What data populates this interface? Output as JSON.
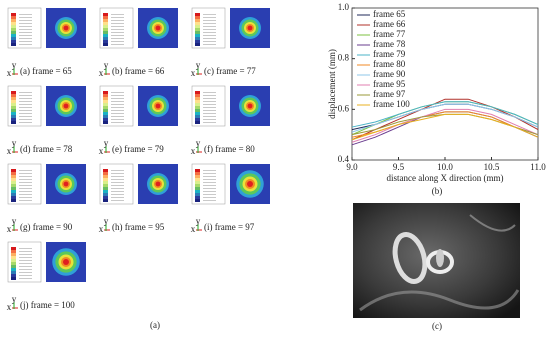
{
  "panel_a": {
    "labels": [
      "(a) frame = 65",
      "(b) frame = 66",
      "(c) frame = 77",
      "(d) frame = 78",
      "(e) frame = 79",
      "(f) frame = 80",
      "(g) frame = 90",
      "(h) frame = 95",
      "(i) frame = 97",
      "(j) frame = 100"
    ],
    "axis_x": "x",
    "axis_y": "y",
    "caption": "(a)"
  },
  "chart_data": {
    "type": "line",
    "x_label": "distance along X direction (mm)",
    "y_label": "displacement (mm)",
    "x": [
      9.0,
      9.25,
      9.5,
      9.75,
      10.0,
      10.25,
      10.5,
      10.75,
      11.0
    ],
    "series": [
      {
        "name": "frame 65",
        "color": "#1f2a5a",
        "values": [
          0.52,
          0.54,
          0.57,
          0.6,
          0.62,
          0.62,
          0.6,
          0.57,
          0.53
        ]
      },
      {
        "name": "frame 66",
        "color": "#b0302a",
        "values": [
          0.48,
          0.52,
          0.56,
          0.6,
          0.64,
          0.64,
          0.61,
          0.57,
          0.52
        ]
      },
      {
        "name": "frame 77",
        "color": "#7cc242",
        "values": [
          0.5,
          0.54,
          0.58,
          0.61,
          0.63,
          0.63,
          0.61,
          0.58,
          0.54
        ]
      },
      {
        "name": "frame 78",
        "color": "#6a3d8f",
        "values": [
          0.46,
          0.49,
          0.53,
          0.57,
          0.59,
          0.59,
          0.57,
          0.53,
          0.49
        ]
      },
      {
        "name": "frame 79",
        "color": "#4bb3c7",
        "values": [
          0.53,
          0.55,
          0.58,
          0.61,
          0.63,
          0.63,
          0.61,
          0.58,
          0.54
        ]
      },
      {
        "name": "frame 80",
        "color": "#f08a24",
        "values": [
          0.49,
          0.51,
          0.54,
          0.57,
          0.59,
          0.59,
          0.57,
          0.53,
          0.5
        ]
      },
      {
        "name": "frame 90",
        "color": "#8fc7ea",
        "values": [
          0.51,
          0.54,
          0.57,
          0.6,
          0.62,
          0.62,
          0.6,
          0.57,
          0.53
        ]
      },
      {
        "name": "frame 95",
        "color": "#e07fb0",
        "values": [
          0.47,
          0.5,
          0.54,
          0.57,
          0.6,
          0.6,
          0.58,
          0.54,
          0.5
        ]
      },
      {
        "name": "frame 97",
        "color": "#9a9a3a",
        "values": [
          0.5,
          0.52,
          0.55,
          0.57,
          0.58,
          0.58,
          0.56,
          0.53,
          0.5
        ]
      },
      {
        "name": "frame 100",
        "color": "#e8b020",
        "values": [
          0.48,
          0.51,
          0.54,
          0.56,
          0.58,
          0.58,
          0.56,
          0.53,
          0.49
        ]
      }
    ],
    "xlim": [
      9.0,
      11.0
    ],
    "ylim": [
      0.4,
      1.0
    ],
    "xticks": [
      {
        "value": 9.0,
        "label": "9.0"
      },
      9.5,
      {
        "value": 10.0,
        "label": "10.0"
      },
      10.5,
      {
        "value": 11.0,
        "label": "11.0"
      }
    ],
    "yticks": [
      0.4,
      0.6,
      0.8,
      {
        "value": 1.0,
        "label": "1.0"
      }
    ],
    "caption": "(b)"
  },
  "panel_c": {
    "caption": "(c)"
  }
}
